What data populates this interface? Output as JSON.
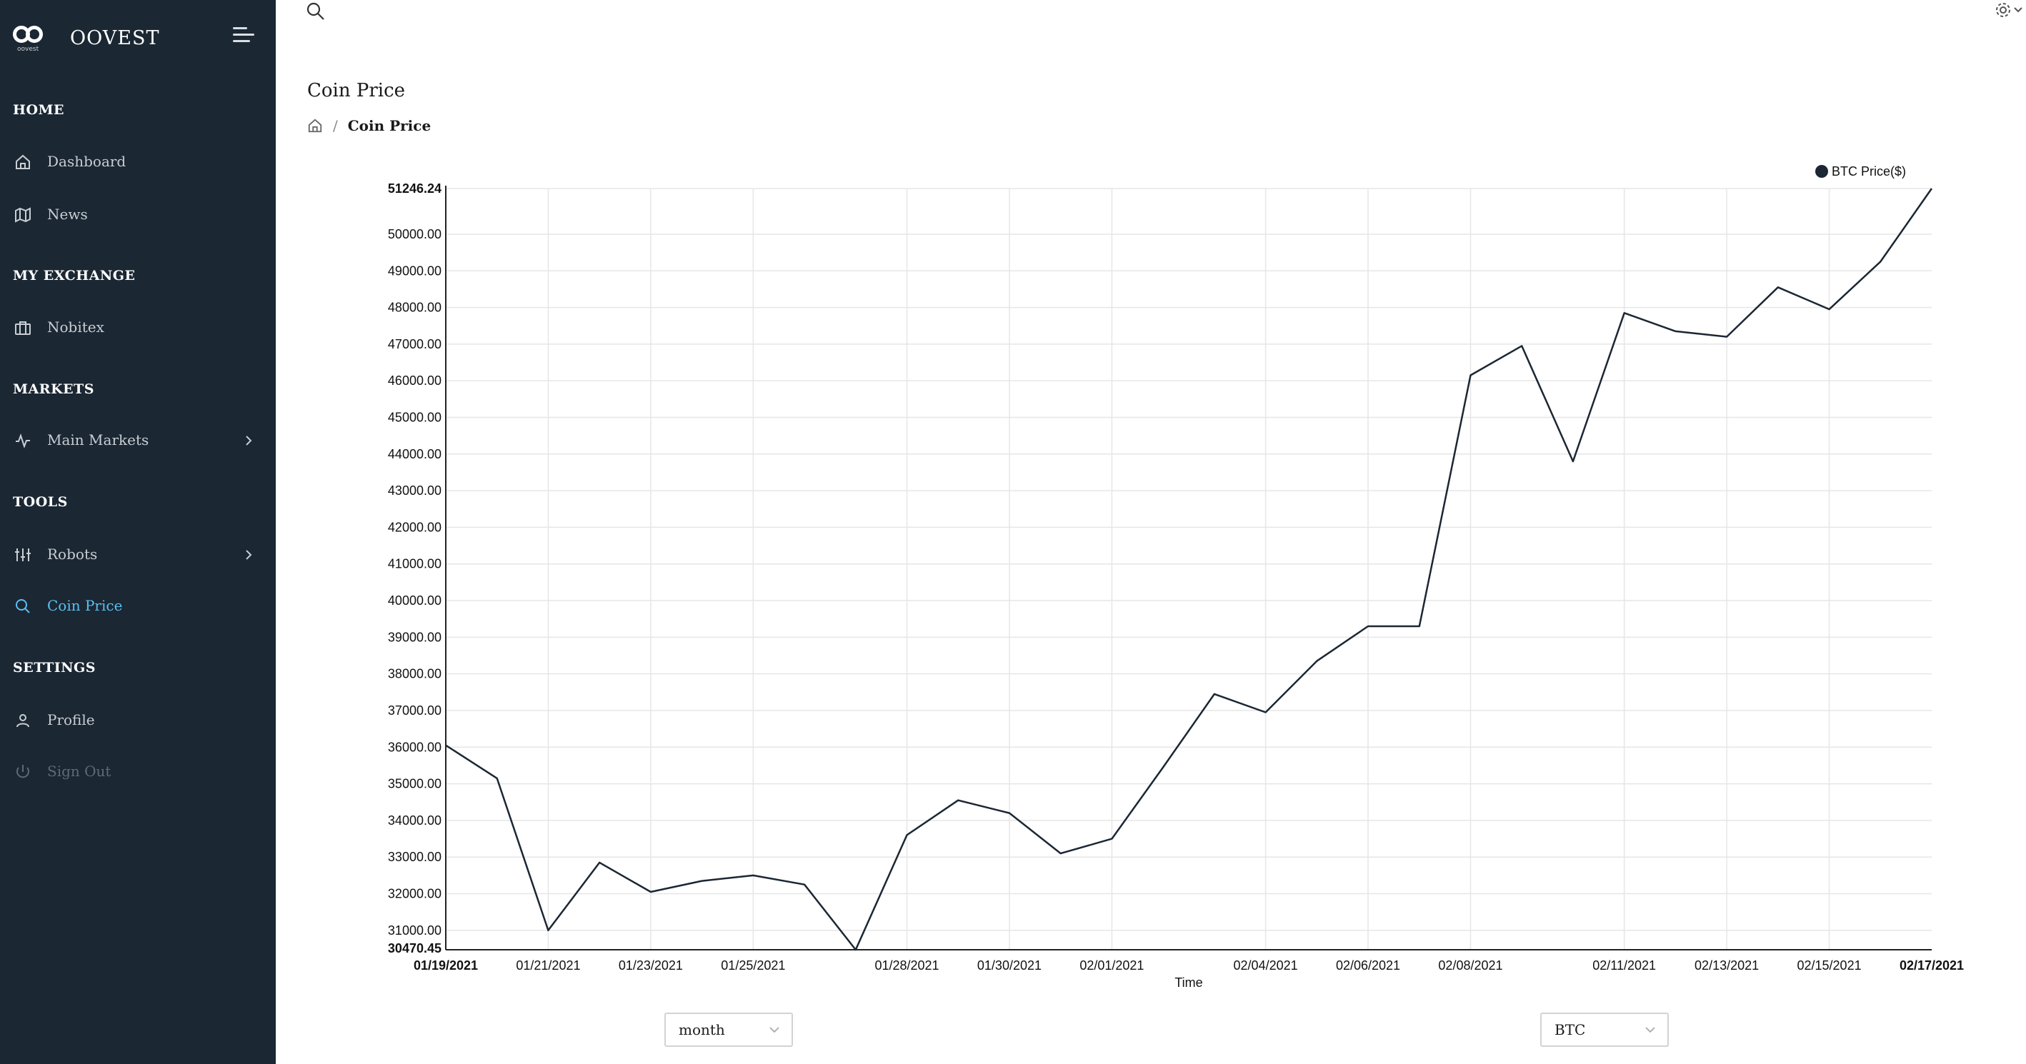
{
  "sidebar": {
    "brand_name": "OOVEST",
    "brand_mini": "oovest",
    "sections": [
      {
        "title": "HOME",
        "items": [
          {
            "label": "Dashboard",
            "icon": "home-icon"
          },
          {
            "label": "News",
            "icon": "map-icon"
          }
        ]
      },
      {
        "title": "MY EXCHANGE",
        "items": [
          {
            "label": "Nobitex",
            "icon": "briefcase-icon"
          }
        ]
      },
      {
        "title": "MARKETS",
        "items": [
          {
            "label": "Main Markets",
            "icon": "activity-icon",
            "has_children": true
          }
        ]
      },
      {
        "title": "TOOLS",
        "items": [
          {
            "label": "Robots",
            "icon": "sliders-icon",
            "has_children": true
          },
          {
            "label": "Coin Price",
            "icon": "search-icon",
            "active": true
          }
        ]
      },
      {
        "title": "SETTINGS",
        "items": [
          {
            "label": "Profile",
            "icon": "user-icon"
          },
          {
            "label": "Sign Out",
            "icon": "power-icon",
            "disabled": true
          }
        ]
      }
    ]
  },
  "header": {
    "title": "Coin Price",
    "breadcrumb_current": "Coin Price",
    "breadcrumb_separator": "/"
  },
  "colors": {
    "sidebar_bg": "#1b2733",
    "active": "#5bc0f0",
    "line": "#1b2733",
    "grid": "#e6e6e6"
  },
  "controls": {
    "period": "month",
    "coin": "BTC"
  },
  "chart_data": {
    "type": "line",
    "xlabel": "Time",
    "ylabel": "",
    "ylim": [
      30470.45,
      51246.24
    ],
    "y_min_label": "30470.45",
    "y_max_label": "51246.24",
    "y_ticks": [
      "31000.00",
      "32000.00",
      "33000.00",
      "34000.00",
      "35000.00",
      "36000.00",
      "37000.00",
      "38000.00",
      "39000.00",
      "40000.00",
      "41000.00",
      "42000.00",
      "43000.00",
      "44000.00",
      "45000.00",
      "46000.00",
      "47000.00",
      "48000.00",
      "49000.00",
      "50000.00"
    ],
    "x_ticks": [
      "01/21/2021",
      "01/23/2021",
      "01/25/2021",
      "01/28/2021",
      "01/30/2021",
      "02/01/2021",
      "02/04/2021",
      "02/06/2021",
      "02/08/2021",
      "02/11/2021",
      "02/13/2021",
      "02/15/2021"
    ],
    "x_first_label": "01/19/2021",
    "x_last_label": "02/17/2021",
    "legend_position": "top-right",
    "grid": true,
    "series": [
      {
        "name": "BTC Price($)",
        "values": [
          36050,
          35150,
          31000,
          32850,
          32050,
          32350,
          32500,
          32250,
          30470.45,
          33600,
          34550,
          34200,
          33100,
          33500,
          35450,
          37450,
          36950,
          38350,
          39300,
          39300,
          46150,
          46950,
          43800,
          47850,
          47350,
          47200,
          48550,
          47950,
          49250,
          51246.24
        ]
      }
    ]
  }
}
